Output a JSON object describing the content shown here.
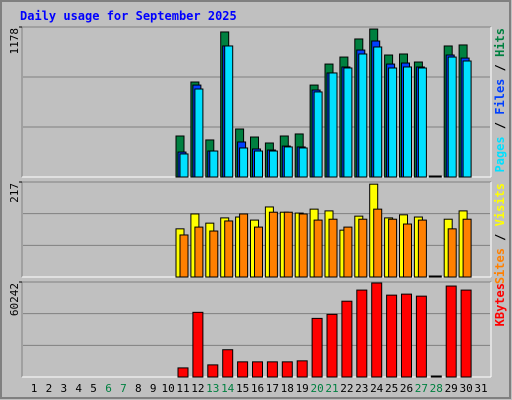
{
  "chart_data": [
    {
      "type": "bar",
      "title": "Daily usage for September 2025",
      "legend_separator": " / ",
      "ylim": [
        0,
        1178
      ],
      "yticks": [
        1178
      ],
      "series": [
        {
          "name": "Pages",
          "color": "#00e0ff",
          "values": [
            null,
            null,
            null,
            null,
            null,
            null,
            null,
            null,
            null,
            null,
            181,
            691,
            204,
            1029,
            228,
            204,
            204,
            236,
            228,
            668,
            817,
            856,
            966,
            1021,
            856,
            864,
            856,
            5,
            942,
            911,
            null
          ]
        },
        {
          "name": "Files",
          "color": "#0040ff",
          "values": [
            null,
            null,
            null,
            null,
            null,
            null,
            null,
            null,
            null,
            null,
            196,
            722,
            204,
            1029,
            275,
            220,
            212,
            243,
            236,
            683,
            817,
            864,
            997,
            1068,
            887,
            895,
            864,
            5,
            958,
            934,
            null
          ]
        },
        {
          "name": "Hits",
          "color": "#008040",
          "values": [
            null,
            null,
            null,
            null,
            null,
            null,
            null,
            null,
            null,
            null,
            322,
            746,
            291,
            1139,
            377,
            314,
            267,
            322,
            338,
            722,
            887,
            942,
            1084,
            1162,
            958,
            966,
            903,
            5,
            1029,
            1037,
            null
          ]
        }
      ]
    },
    {
      "type": "bar",
      "legend_separator": " / ",
      "ylim": [
        0,
        217
      ],
      "yticks": [
        217
      ],
      "series": [
        {
          "name": "Sites",
          "color": "#ff8000",
          "values": [
            null,
            null,
            null,
            null,
            null,
            null,
            null,
            null,
            null,
            null,
            96,
            114,
            105,
            128,
            144,
            114,
            148,
            148,
            144,
            130,
            132,
            114,
            132,
            155,
            132,
            121,
            130,
            2,
            110,
            132,
            null
          ]
        },
        {
          "name": "Visits",
          "color": "#ffff00",
          "values": [
            null,
            null,
            null,
            null,
            null,
            null,
            null,
            null,
            null,
            null,
            110,
            144,
            123,
            135,
            137,
            130,
            160,
            148,
            146,
            155,
            151,
            107,
            139,
            212,
            135,
            142,
            137,
            2,
            132,
            151,
            null
          ]
        }
      ]
    },
    {
      "type": "bar",
      "ylim": [
        0,
        60242
      ],
      "yticks": [
        60242
      ],
      "categories": [
        "1",
        "2",
        "3",
        "4",
        "5",
        "6",
        "7",
        "8",
        "9",
        "10",
        "11",
        "12",
        "13",
        "14",
        "15",
        "16",
        "17",
        "18",
        "19",
        "20",
        "21",
        "22",
        "23",
        "24",
        "25",
        "26",
        "27",
        "28",
        "29",
        "30",
        "31"
      ],
      "category_colors": [
        "#000000",
        "#000000",
        "#000000",
        "#000000",
        "#000000",
        "#008040",
        "#008040",
        "#000000",
        "#000000",
        "#000000",
        "#000000",
        "#000000",
        "#008040",
        "#008040",
        "#000000",
        "#000000",
        "#000000",
        "#000000",
        "#000000",
        "#008040",
        "#008040",
        "#000000",
        "#000000",
        "#000000",
        "#000000",
        "#000000",
        "#008040",
        "#008040",
        "#000000",
        "#000000",
        "#000000"
      ],
      "series": [
        {
          "name": "KBytes",
          "color": "#ff0000",
          "values": [
            null,
            null,
            null,
            null,
            null,
            null,
            null,
            null,
            null,
            null,
            5768,
            41016,
            7690,
            17300,
            9613,
            9613,
            9613,
            9613,
            10254,
            37171,
            39734,
            48065,
            55115,
            59601,
            51910,
            52551,
            51269,
            0,
            57678,
            55115,
            null
          ]
        }
      ]
    }
  ]
}
